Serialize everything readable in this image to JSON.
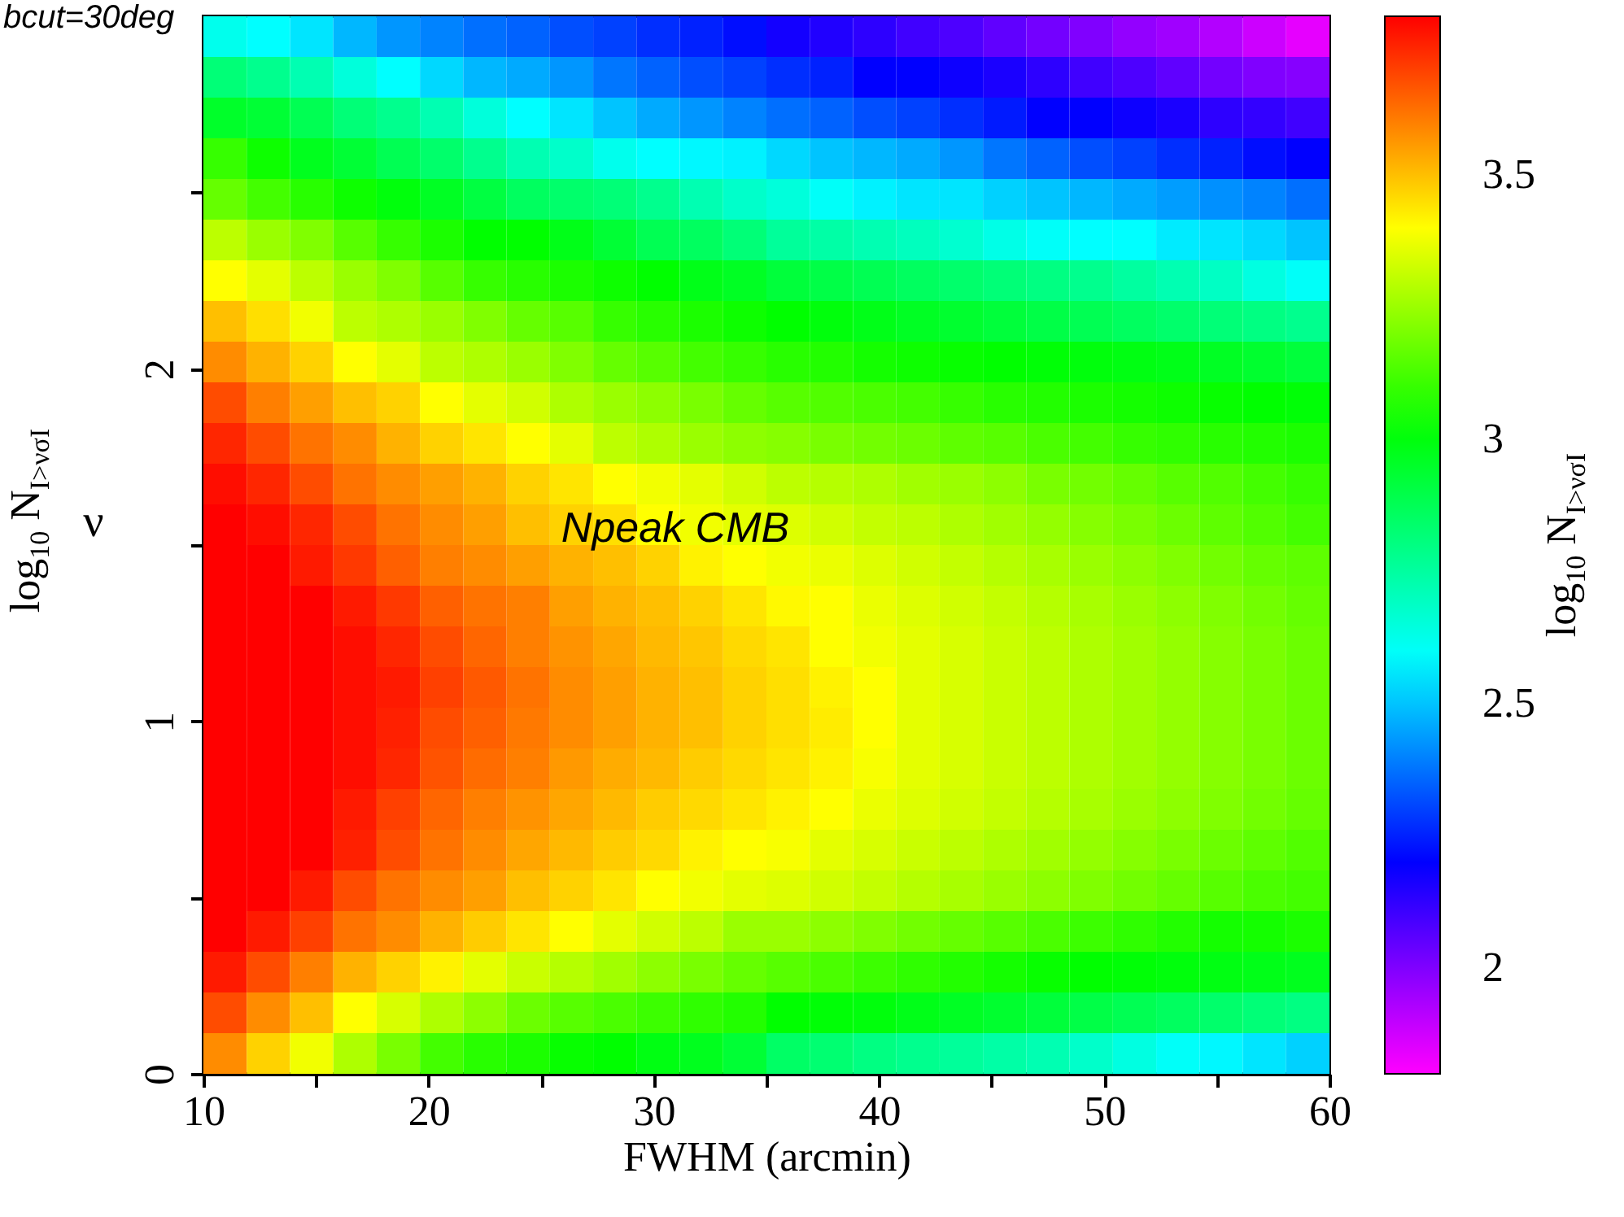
{
  "chart_data": {
    "type": "heatmap",
    "xlabel": "FWHM (arcmin)",
    "ylabel": "ν",
    "clabel": "log$_{10}$ N$_{I>νσI}$",
    "annotations": [
      "Npeak CMB",
      "bcut=30deg",
      "log$_{10}$ N$_{I>νσI}$"
    ],
    "xlim": [
      10,
      60
    ],
    "xticks": [
      10,
      {
        "value": 15,
        "label": null
      },
      20,
      {
        "value": 25,
        "label": null
      },
      30,
      {
        "value": 35,
        "label": null
      },
      40,
      {
        "value": 45,
        "label": null
      },
      50,
      {
        "value": 55,
        "label": null
      },
      60
    ],
    "ylim": [
      0,
      3
    ],
    "yticks": [
      0,
      {
        "value": 0.5,
        "label": null
      },
      1,
      {
        "value": 1.5,
        "label": null
      },
      2,
      {
        "value": 2.5,
        "label": null
      }
    ],
    "clim": [
      1.8,
      3.8
    ],
    "cticks": [
      2,
      2.5,
      3,
      3.5
    ],
    "grid": false,
    "cells": [
      [
        2.62,
        2.59,
        2.55,
        2.48,
        2.43,
        2.4,
        2.37,
        2.35,
        2.32,
        2.3,
        2.27,
        2.25,
        2.22,
        2.17,
        2.15,
        2.13,
        2.1,
        2.08,
        2.05,
        2.02,
        2.0,
        1.97,
        1.95,
        1.92,
        1.88,
        1.84
      ],
      [
        2.82,
        2.78,
        2.72,
        2.65,
        2.59,
        2.53,
        2.48,
        2.46,
        2.43,
        2.38,
        2.35,
        2.32,
        2.3,
        2.27,
        2.25,
        2.2,
        2.2,
        2.18,
        2.16,
        2.13,
        2.1,
        2.08,
        2.05,
        2.02,
        2.0,
        1.99
      ],
      [
        2.95,
        2.93,
        2.88,
        2.82,
        2.78,
        2.72,
        2.65,
        2.59,
        2.55,
        2.5,
        2.46,
        2.43,
        2.4,
        2.37,
        2.35,
        2.32,
        2.3,
        2.27,
        2.24,
        2.2,
        2.2,
        2.18,
        2.16,
        2.13,
        2.12,
        2.1
      ],
      [
        3.1,
        3.04,
        2.97,
        2.93,
        2.88,
        2.84,
        2.78,
        2.72,
        2.68,
        2.62,
        2.59,
        2.58,
        2.57,
        2.53,
        2.5,
        2.48,
        2.46,
        2.43,
        2.38,
        2.35,
        2.32,
        2.3,
        2.27,
        2.25,
        2.22,
        2.2
      ],
      [
        3.17,
        3.12,
        3.08,
        3.04,
        3.0,
        2.96,
        2.91,
        2.86,
        2.84,
        2.82,
        2.78,
        2.72,
        2.68,
        2.65,
        2.6,
        2.57,
        2.55,
        2.55,
        2.52,
        2.5,
        2.48,
        2.46,
        2.44,
        2.42,
        2.4,
        2.37
      ],
      [
        3.3,
        3.25,
        3.21,
        3.15,
        3.1,
        3.06,
        3.02,
        3.02,
        2.98,
        2.93,
        2.88,
        2.86,
        2.82,
        2.76,
        2.74,
        2.72,
        2.7,
        2.67,
        2.63,
        2.6,
        2.59,
        2.59,
        2.56,
        2.55,
        2.53,
        2.5
      ],
      [
        3.4,
        3.36,
        3.3,
        3.25,
        3.21,
        3.15,
        3.1,
        3.08,
        3.06,
        3.04,
        3.02,
        2.98,
        2.96,
        2.92,
        2.9,
        2.88,
        2.86,
        2.84,
        2.82,
        2.8,
        2.78,
        2.75,
        2.72,
        2.69,
        2.64,
        2.6
      ],
      [
        3.5,
        3.45,
        3.38,
        3.3,
        3.28,
        3.25,
        3.21,
        3.17,
        3.15,
        3.1,
        3.08,
        3.06,
        3.04,
        3.02,
        3.0,
        2.98,
        2.96,
        2.94,
        2.92,
        2.9,
        2.88,
        2.86,
        2.84,
        2.82,
        2.8,
        2.78
      ],
      [
        3.58,
        3.52,
        3.47,
        3.4,
        3.36,
        3.3,
        3.28,
        3.25,
        3.21,
        3.17,
        3.15,
        3.12,
        3.1,
        3.08,
        3.07,
        3.05,
        3.04,
        3.03,
        3.02,
        3.01,
        3.0,
        2.99,
        2.98,
        2.96,
        2.94,
        2.92
      ],
      [
        3.68,
        3.6,
        3.55,
        3.5,
        3.47,
        3.4,
        3.36,
        3.33,
        3.28,
        3.25,
        3.23,
        3.2,
        3.17,
        3.15,
        3.14,
        3.13,
        3.12,
        3.1,
        3.08,
        3.07,
        3.06,
        3.05,
        3.04,
        3.03,
        3.02,
        3.01
      ],
      [
        3.74,
        3.68,
        3.62,
        3.58,
        3.52,
        3.47,
        3.44,
        3.4,
        3.36,
        3.3,
        3.28,
        3.25,
        3.23,
        3.22,
        3.2,
        3.19,
        3.18,
        3.16,
        3.15,
        3.13,
        3.12,
        3.1,
        3.09,
        3.08,
        3.07,
        3.06
      ],
      [
        3.78,
        3.74,
        3.68,
        3.62,
        3.58,
        3.55,
        3.52,
        3.47,
        3.44,
        3.4,
        3.38,
        3.36,
        3.33,
        3.3,
        3.29,
        3.28,
        3.26,
        3.25,
        3.23,
        3.2,
        3.19,
        3.17,
        3.15,
        3.14,
        3.12,
        3.1
      ],
      [
        3.8,
        3.78,
        3.74,
        3.68,
        3.62,
        3.58,
        3.55,
        3.5,
        3.47,
        3.45,
        3.4,
        3.38,
        3.36,
        3.35,
        3.33,
        3.31,
        3.3,
        3.28,
        3.26,
        3.24,
        3.22,
        3.2,
        3.18,
        3.16,
        3.14,
        3.12
      ],
      [
        3.8,
        3.8,
        3.76,
        3.71,
        3.65,
        3.6,
        3.58,
        3.55,
        3.52,
        3.5,
        3.47,
        3.42,
        3.4,
        3.38,
        3.37,
        3.35,
        3.33,
        3.31,
        3.29,
        3.27,
        3.25,
        3.23,
        3.21,
        3.19,
        3.17,
        3.16
      ],
      [
        3.8,
        3.8,
        3.8,
        3.76,
        3.71,
        3.65,
        3.62,
        3.6,
        3.55,
        3.52,
        3.5,
        3.47,
        3.44,
        3.41,
        3.4,
        3.37,
        3.35,
        3.33,
        3.31,
        3.29,
        3.27,
        3.25,
        3.23,
        3.21,
        3.19,
        3.17
      ],
      [
        3.8,
        3.8,
        3.8,
        3.78,
        3.74,
        3.68,
        3.64,
        3.6,
        3.57,
        3.54,
        3.51,
        3.49,
        3.46,
        3.44,
        3.4,
        3.38,
        3.36,
        3.34,
        3.32,
        3.3,
        3.28,
        3.26,
        3.24,
        3.22,
        3.2,
        3.18
      ],
      [
        3.8,
        3.8,
        3.8,
        3.78,
        3.76,
        3.7,
        3.66,
        3.62,
        3.58,
        3.55,
        3.52,
        3.5,
        3.47,
        3.45,
        3.42,
        3.4,
        3.36,
        3.34,
        3.32,
        3.3,
        3.28,
        3.26,
        3.24,
        3.22,
        3.2,
        3.18
      ],
      [
        3.8,
        3.8,
        3.8,
        3.78,
        3.75,
        3.68,
        3.65,
        3.61,
        3.58,
        3.55,
        3.52,
        3.5,
        3.47,
        3.45,
        3.43,
        3.4,
        3.36,
        3.34,
        3.32,
        3.3,
        3.28,
        3.26,
        3.24,
        3.22,
        3.2,
        3.18
      ],
      [
        3.8,
        3.8,
        3.8,
        3.78,
        3.74,
        3.67,
        3.63,
        3.6,
        3.56,
        3.53,
        3.51,
        3.48,
        3.46,
        3.44,
        3.42,
        3.39,
        3.36,
        3.34,
        3.32,
        3.3,
        3.28,
        3.26,
        3.24,
        3.22,
        3.2,
        3.18
      ],
      [
        3.8,
        3.8,
        3.8,
        3.76,
        3.7,
        3.64,
        3.6,
        3.57,
        3.54,
        3.51,
        3.48,
        3.46,
        3.44,
        3.42,
        3.4,
        3.37,
        3.35,
        3.33,
        3.31,
        3.29,
        3.27,
        3.25,
        3.23,
        3.21,
        3.19,
        3.17
      ],
      [
        3.8,
        3.8,
        3.8,
        3.75,
        3.68,
        3.62,
        3.58,
        3.54,
        3.51,
        3.48,
        3.46,
        3.42,
        3.4,
        3.39,
        3.36,
        3.34,
        3.32,
        3.3,
        3.28,
        3.26,
        3.24,
        3.22,
        3.2,
        3.18,
        3.16,
        3.14
      ],
      [
        3.8,
        3.8,
        3.76,
        3.68,
        3.62,
        3.58,
        3.55,
        3.5,
        3.47,
        3.44,
        3.4,
        3.38,
        3.36,
        3.35,
        3.33,
        3.31,
        3.29,
        3.27,
        3.25,
        3.23,
        3.21,
        3.19,
        3.17,
        3.15,
        3.13,
        3.12
      ],
      [
        3.8,
        3.76,
        3.7,
        3.62,
        3.58,
        3.52,
        3.48,
        3.44,
        3.4,
        3.36,
        3.33,
        3.3,
        3.25,
        3.25,
        3.23,
        3.21,
        3.19,
        3.17,
        3.15,
        3.13,
        3.11,
        3.09,
        3.07,
        3.05,
        3.05,
        3.06
      ],
      [
        3.76,
        3.68,
        3.6,
        3.52,
        3.47,
        3.42,
        3.36,
        3.32,
        3.29,
        3.26,
        3.23,
        3.2,
        3.17,
        3.15,
        3.13,
        3.11,
        3.09,
        3.07,
        3.05,
        3.03,
        3.02,
        3.01,
        3.0,
        2.99,
        2.98,
        2.97
      ],
      [
        3.68,
        3.58,
        3.5,
        3.4,
        3.34,
        3.28,
        3.23,
        3.18,
        3.15,
        3.13,
        3.11,
        3.09,
        3.07,
        3.02,
        3.01,
        3.0,
        2.98,
        2.96,
        2.94,
        2.92,
        2.9,
        2.88,
        2.86,
        2.84,
        2.82,
        2.8
      ],
      [
        3.58,
        3.47,
        3.38,
        3.28,
        3.2,
        3.12,
        3.08,
        3.06,
        3.03,
        3.02,
        2.99,
        2.97,
        2.93,
        2.85,
        2.83,
        2.8,
        2.78,
        2.76,
        2.74,
        2.72,
        2.68,
        2.64,
        2.6,
        2.58,
        2.55,
        2.52
      ]
    ]
  }
}
